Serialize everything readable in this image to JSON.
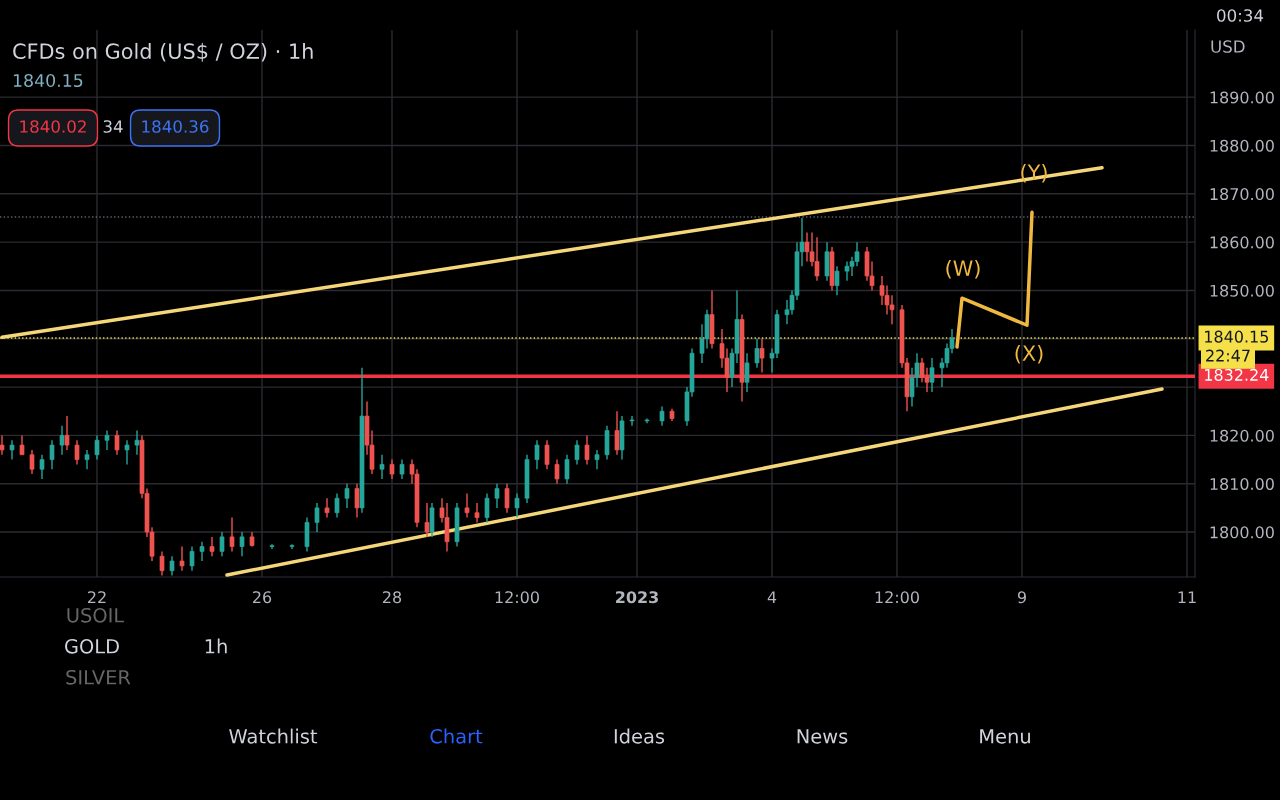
{
  "chart_data": {
    "type": "candlestick",
    "title": "CFDs on Gold (US$ / OZ) · 1h",
    "subtitle": "1840.15",
    "ylabel": "USD",
    "categories": [
      null,
      null,
      null,
      null,
      null,
      null,
      null,
      null,
      null,
      null,
      null,
      null,
      null,
      null,
      null,
      null,
      null,
      null,
      null,
      "22",
      null,
      null,
      null,
      null,
      null,
      null,
      null,
      null,
      null,
      null,
      null,
      null,
      null,
      null,
      null,
      null,
      null,
      null,
      null,
      null,
      null,
      null,
      null,
      null,
      null,
      null,
      null,
      null,
      null,
      null,
      null,
      null,
      "26",
      null,
      null,
      null,
      null,
      null,
      null,
      null,
      null,
      null,
      null,
      null,
      null,
      null,
      null,
      null,
      null,
      null,
      null,
      null,
      null,
      null,
      null,
      null,
      null,
      null,
      "28",
      null,
      null,
      null,
      null,
      null,
      null,
      null,
      null,
      null,
      null,
      null,
      null,
      null,
      null,
      null,
      null,
      null,
      null,
      null,
      null,
      null,
      null,
      null,
      null,
      "12:00",
      null,
      null,
      null,
      null,
      null,
      null,
      null,
      null,
      null,
      null,
      null,
      null,
      null,
      null,
      null,
      null,
      null,
      null,
      null,
      null,
      null,
      null,
      null,
      "2023",
      null,
      null,
      null,
      null,
      null,
      null,
      null,
      null,
      null,
      null,
      null,
      null,
      null,
      null,
      null,
      null,
      null,
      null,
      null,
      null,
      null,
      null,
      null,
      null,
      null,
      null,
      "4",
      null,
      null,
      null,
      null,
      null,
      null,
      null,
      null,
      null,
      null,
      null,
      null,
      null,
      null,
      null,
      null,
      null,
      null,
      null,
      null,
      null,
      null,
      null,
      null,
      "12:00",
      null,
      null,
      null,
      null,
      null,
      null,
      null,
      null,
      null,
      null,
      null,
      null,
      null,
      null,
      null,
      null,
      null,
      null,
      null,
      null,
      null,
      null,
      null,
      null,
      "9",
      null,
      null,
      null,
      null,
      null,
      null,
      null,
      null,
      null,
      null,
      null,
      null,
      null,
      null,
      null,
      null,
      null,
      null,
      null,
      null,
      null,
      null,
      null,
      null,
      null,
      null,
      null,
      null,
      null,
      null,
      null,
      null,
      "11",
      null
    ],
    "ohlc": [
      [
        1818,
        1820,
        1816,
        1817
      ],
      null,
      [
        1817,
        1819,
        1815,
        1818
      ],
      null,
      [
        1818,
        1820,
        1816,
        1816
      ],
      null,
      [
        1816,
        1817,
        1812,
        1813
      ],
      null,
      [
        1813,
        1816,
        1811,
        1815
      ],
      null,
      [
        1815,
        1819,
        1813,
        1818
      ],
      null,
      [
        1818,
        1822,
        1816,
        1820
      ],
      [
        1820,
        1824,
        1817,
        1818
      ],
      null,
      [
        1818,
        1819,
        1814,
        1815
      ],
      null,
      [
        1815,
        1817,
        1813,
        1816
      ],
      null,
      [
        1816,
        1820,
        1815,
        1819
      ],
      null,
      [
        1819,
        1821,
        1817,
        1820
      ],
      null,
      [
        1820,
        1821,
        1816,
        1817
      ],
      null,
      [
        1817,
        1819,
        1814,
        1818
      ],
      null,
      [
        1818,
        1821,
        1816,
        1819
      ],
      [
        1819,
        1820,
        1807,
        1808
      ],
      [
        1808,
        1809,
        1799,
        1800
      ],
      [
        1800,
        1801,
        1794,
        1795
      ],
      null,
      [
        1795,
        1796,
        1791,
        1792
      ],
      null,
      [
        1792,
        1795,
        1791,
        1794
      ],
      null,
      [
        1794,
        1797,
        1792,
        1793
      ],
      null,
      [
        1793,
        1797,
        1792,
        1796
      ],
      null,
      [
        1796,
        1798,
        1794,
        1797
      ],
      null,
      [
        1797,
        1799,
        1795,
        1796
      ],
      null,
      [
        1796,
        1800,
        1795,
        1799
      ],
      null,
      [
        1799,
        1803,
        1796,
        1797
      ],
      null,
      [
        1797,
        1800,
        1795,
        1799
      ],
      null,
      [
        1799,
        1800,
        1797,
        1797.2
      ],
      null,
      null,
      null,
      [
        1797,
        1797.5,
        1796.5,
        1797.2
      ],
      null,
      null,
      null,
      [
        1797,
        1797.5,
        1796.5,
        1797.2
      ],
      null,
      null,
      [
        1797,
        1803,
        1796,
        1802
      ],
      null,
      [
        1802,
        1806,
        1800,
        1805
      ],
      null,
      [
        1805,
        1807,
        1803,
        1804
      ],
      null,
      [
        1804,
        1808,
        1803,
        1807
      ],
      null,
      [
        1807,
        1810,
        1805,
        1809
      ],
      null,
      [
        1809,
        1810,
        1803,
        1805
      ],
      [
        1805,
        1834,
        1804,
        1824
      ],
      [
        1824,
        1827,
        1816,
        1818
      ],
      [
        1818,
        1821,
        1812,
        1813
      ],
      null,
      [
        1813,
        1816,
        1811,
        1814
      ],
      null,
      [
        1814,
        1815,
        1811,
        1812
      ],
      null,
      [
        1812,
        1815,
        1811,
        1814
      ],
      null,
      [
        1814,
        1815,
        1810,
        1812
      ],
      [
        1812,
        1813,
        1801,
        1802
      ],
      null,
      [
        1802,
        1806,
        1799,
        1800
      ],
      [
        1800,
        1806,
        1799,
        1805
      ],
      null,
      [
        1805,
        1807,
        1802,
        1803
      ],
      [
        1803,
        1806,
        1796,
        1798
      ],
      null,
      [
        1798,
        1806,
        1797,
        1805
      ],
      null,
      [
        1805,
        1808,
        1803,
        1804
      ],
      null,
      [
        1804,
        1806,
        1802,
        1803
      ],
      null,
      [
        1803,
        1808,
        1802,
        1807
      ],
      null,
      [
        1807,
        1810,
        1805,
        1809
      ],
      null,
      [
        1809,
        1810,
        1804,
        1805
      ],
      null,
      [
        1805,
        1808,
        1803,
        1807
      ],
      null,
      [
        1807,
        1816,
        1806,
        1815
      ],
      null,
      [
        1815,
        1819,
        1813,
        1818
      ],
      null,
      [
        1818,
        1819,
        1813,
        1814
      ],
      null,
      [
        1814,
        1815,
        1810,
        1811
      ],
      null,
      [
        1811,
        1816,
        1810,
        1815
      ],
      null,
      [
        1815,
        1819,
        1814,
        1818
      ],
      null,
      [
        1818,
        1820,
        1814,
        1815
      ],
      null,
      [
        1815,
        1817,
        1813,
        1816
      ],
      null,
      [
        1816,
        1822,
        1815,
        1821
      ],
      null,
      [
        1821,
        1825,
        1816,
        1817
      ],
      [
        1817,
        1824,
        1815,
        1823
      ],
      null,
      [
        1823,
        1824,
        1822,
        1823.2
      ],
      null,
      null,
      [
        1823,
        1823.5,
        1822.5,
        1823.2
      ],
      null,
      null,
      [
        1823,
        1826,
        1822,
        1825
      ],
      null,
      [
        1825,
        1825.5,
        1823,
        1823.5
      ],
      null,
      null,
      [
        1823,
        1830,
        1822,
        1829
      ],
      [
        1829,
        1838,
        1828,
        1837
      ],
      null,
      [
        1837,
        1843,
        1835,
        1840
      ],
      [
        1840,
        1846,
        1838,
        1845
      ],
      [
        1845,
        1850,
        1838,
        1839
      ],
      null,
      [
        1839,
        1842,
        1834,
        1836
      ],
      [
        1836,
        1838,
        1829,
        1832
      ],
      [
        1832,
        1838,
        1830,
        1837
      ],
      [
        1837,
        1850,
        1835,
        1844
      ],
      [
        1844,
        1845,
        1827,
        1831
      ],
      [
        1831,
        1837,
        1829,
        1835
      ],
      null,
      [
        1835,
        1840,
        1834,
        1838
      ],
      [
        1838,
        1840,
        1833,
        1836
      ],
      null,
      [
        1836,
        1838,
        1833,
        1837
      ],
      [
        1837,
        1846,
        1836,
        1845
      ],
      null,
      [
        1845,
        1848,
        1843,
        1846
      ],
      [
        1846,
        1850,
        1845,
        1849
      ],
      [
        1849,
        1860,
        1848,
        1858
      ],
      [
        1858,
        1865,
        1855,
        1860
      ],
      [
        1860,
        1862,
        1856,
        1858
      ],
      [
        1858,
        1862,
        1855,
        1856
      ],
      [
        1856,
        1861,
        1852,
        1853
      ],
      null,
      [
        1853,
        1860,
        1852,
        1858
      ],
      [
        1858,
        1859,
        1850,
        1851
      ],
      [
        1851,
        1855,
        1849,
        1854
      ],
      null,
      [
        1854,
        1856,
        1852,
        1855
      ],
      [
        1855,
        1857,
        1853,
        1856
      ],
      [
        1856,
        1860,
        1855,
        1858
      ],
      null,
      [
        1858,
        1859,
        1852,
        1853
      ],
      [
        1853,
        1856,
        1850,
        1851
      ],
      null,
      [
        1851,
        1853,
        1847,
        1849
      ],
      [
        1849,
        1851,
        1845,
        1847
      ],
      [
        1847,
        1849,
        1843,
        1846
      ],
      null,
      [
        1846,
        1847,
        1834,
        1835
      ],
      [
        1835,
        1836,
        1825,
        1828
      ],
      [
        1828,
        1834,
        1826,
        1832
      ],
      [
        1832,
        1837,
        1830,
        1835
      ],
      [
        1835,
        1836,
        1831,
        1832
      ],
      [
        1832,
        1834,
        1829,
        1831
      ],
      [
        1831,
        1836,
        1829,
        1834
      ],
      null,
      [
        1834,
        1836,
        1830,
        1835
      ],
      [
        1835,
        1839,
        1834,
        1838
      ],
      [
        1838,
        1842,
        1837,
        1840.15
      ],
      null,
      null,
      null,
      null,
      null,
      null,
      null,
      null,
      null,
      null,
      null,
      null,
      null,
      null,
      null,
      null,
      null,
      null,
      null,
      null,
      null,
      null,
      null,
      null,
      null,
      null,
      null,
      null,
      null,
      null,
      null,
      null,
      null,
      null,
      null,
      null,
      null,
      null,
      null,
      null,
      null,
      null,
      null,
      null,
      null,
      null,
      null,
      null
    ],
    "series": [
      {
        "type": "line",
        "color": "#f5d77a",
        "values": [
          1840.3,
          null,
          null,
          null,
          null,
          null,
          null,
          null,
          null,
          null,
          null,
          null,
          null,
          null,
          null,
          null,
          null,
          null,
          null,
          null,
          null,
          null,
          null,
          null,
          null,
          null,
          null,
          null,
          null,
          null,
          null,
          null,
          null,
          null,
          null,
          null,
          null,
          null,
          null,
          null,
          null,
          null,
          null,
          null,
          null,
          null,
          null,
          null,
          null,
          null,
          null,
          null,
          null,
          null,
          null,
          null,
          null,
          null,
          null,
          null,
          null,
          null,
          null,
          null,
          null,
          null,
          null,
          null,
          null,
          null,
          null,
          null,
          null,
          null,
          null,
          null,
          null,
          null,
          null,
          null,
          null,
          null,
          null,
          null,
          null,
          null,
          null,
          null,
          null,
          null,
          null,
          null,
          null,
          null,
          null,
          null,
          null,
          null,
          null,
          null,
          null,
          null,
          null,
          null,
          null,
          null,
          null,
          null,
          null,
          null,
          null,
          null,
          null,
          null,
          null,
          null,
          null,
          null,
          null,
          null,
          null,
          null,
          null,
          null,
          null,
          null,
          null,
          null,
          null,
          null,
          null,
          null,
          null,
          null,
          null,
          null,
          null,
          null,
          null,
          null,
          null,
          null,
          null,
          null,
          null,
          null,
          null,
          null,
          null,
          null,
          null,
          null,
          null,
          null,
          null,
          null,
          null,
          null,
          null,
          null,
          null,
          null,
          null,
          null,
          null,
          null,
          null,
          null,
          null,
          null,
          null,
          null,
          null,
          null,
          null,
          null,
          null,
          null,
          null,
          null,
          null,
          null,
          null,
          null,
          null,
          null,
          null,
          null,
          null,
          null,
          null,
          null,
          null,
          null,
          null,
          null,
          null,
          null,
          null,
          null,
          null,
          null,
          null,
          null,
          null,
          null,
          null,
          null,
          null,
          null,
          null,
          null,
          null,
          null,
          null,
          null,
          null,
          null,
          null,
          null,
          1875.4,
          null,
          null,
          null,
          null,
          null,
          null,
          null,
          null,
          null,
          null,
          null,
          null,
          null,
          null,
          null,
          null,
          null,
          null
        ]
      },
      {
        "type": "line",
        "color": "#f5d77a",
        "values": [
          null,
          null,
          null,
          null,
          null,
          null,
          null,
          null,
          null,
          null,
          null,
          null,
          null,
          null,
          null,
          null,
          null,
          null,
          null,
          null,
          null,
          null,
          null,
          null,
          null,
          null,
          null,
          null,
          null,
          null,
          null,
          null,
          null,
          null,
          null,
          null,
          null,
          null,
          null,
          null,
          null,
          null,
          null,
          null,
          null,
          1791.1,
          null,
          null,
          null,
          null,
          null,
          null,
          null,
          null,
          null,
          null,
          null,
          null,
          null,
          null,
          null,
          null,
          null,
          null,
          null,
          null,
          null,
          null,
          null,
          null,
          null,
          null,
          null,
          null,
          null,
          null,
          null,
          null,
          null,
          null,
          null,
          null,
          null,
          null,
          null,
          null,
          null,
          null,
          null,
          null,
          null,
          null,
          null,
          null,
          null,
          null,
          null,
          null,
          null,
          null,
          null,
          null,
          null,
          null,
          null,
          null,
          null,
          null,
          null,
          null,
          null,
          null,
          null,
          null,
          null,
          null,
          null,
          null,
          null,
          null,
          null,
          null,
          null,
          null,
          null,
          null,
          null,
          null,
          null,
          null,
          null,
          null,
          null,
          null,
          null,
          null,
          null,
          null,
          null,
          null,
          null,
          null,
          null,
          null,
          null,
          null,
          null,
          null,
          null,
          null,
          null,
          null,
          null,
          null,
          null,
          null,
          null,
          null,
          null,
          null,
          null,
          null,
          null,
          null,
          null,
          null,
          null,
          null,
          null,
          null,
          null,
          null,
          null,
          null,
          null,
          null,
          null,
          null,
          null,
          null,
          null,
          null,
          null,
          null,
          null,
          null,
          null,
          null,
          null,
          null,
          null,
          null,
          null,
          null,
          null,
          null,
          null,
          null,
          null,
          null,
          null,
          null,
          null,
          null,
          null,
          null,
          null,
          null,
          null,
          null,
          null,
          null,
          null,
          null,
          null,
          null,
          null,
          null,
          null,
          null,
          null,
          null,
          null,
          null,
          null,
          null,
          null,
          null,
          null,
          null,
          null,
          null,
          1829.6,
          null,
          null,
          null,
          null,
          null,
          null
        ]
      },
      {
        "type": "line",
        "color": "#f0b840",
        "values": [
          null,
          null,
          null,
          null,
          null,
          null,
          null,
          null,
          null,
          null,
          null,
          null,
          null,
          null,
          null,
          null,
          null,
          null,
          null,
          null,
          null,
          null,
          null,
          null,
          null,
          null,
          null,
          null,
          null,
          null,
          null,
          null,
          null,
          null,
          null,
          null,
          null,
          null,
          null,
          null,
          null,
          null,
          null,
          null,
          null,
          null,
          null,
          null,
          null,
          null,
          null,
          null,
          null,
          null,
          null,
          null,
          null,
          null,
          null,
          null,
          null,
          null,
          null,
          null,
          null,
          null,
          null,
          null,
          null,
          null,
          null,
          null,
          null,
          null,
          null,
          null,
          null,
          null,
          null,
          null,
          null,
          null,
          null,
          null,
          null,
          null,
          null,
          null,
          null,
          null,
          null,
          null,
          null,
          null,
          null,
          null,
          null,
          null,
          null,
          null,
          null,
          null,
          null,
          null,
          null,
          null,
          null,
          null,
          null,
          null,
          null,
          null,
          null,
          null,
          null,
          null,
          null,
          null,
          null,
          null,
          null,
          null,
          null,
          null,
          null,
          null,
          null,
          null,
          null,
          null,
          null,
          null,
          null,
          null,
          null,
          null,
          null,
          null,
          null,
          null,
          null,
          null,
          null,
          null,
          null,
          null,
          null,
          null,
          null,
          null,
          null,
          null,
          null,
          null,
          null,
          null,
          null,
          null,
          null,
          null,
          null,
          null,
          null,
          null,
          null,
          null,
          null,
          null,
          null,
          null,
          null,
          null,
          null,
          null,
          null,
          null,
          null,
          null,
          null,
          null,
          null,
          null,
          null,
          null,
          null,
          null,
          null,
          null,
          null,
          null,
          null,
          1838.3,
          1848.4,
          null,
          null,
          null,
          null,
          null,
          null,
          null,
          null,
          null,
          null,
          null,
          null,
          1842.8,
          1866.2,
          null,
          null,
          null,
          null,
          null,
          null,
          null,
          null,
          null,
          null,
          null,
          null,
          null,
          null,
          null,
          null,
          null,
          null,
          null,
          null,
          null,
          null,
          null,
          null,
          null,
          null,
          null,
          null,
          null,
          null,
          null,
          null
        ]
      }
    ],
    "ref_lines": [
      {
        "axis": "y",
        "value": 1832.24,
        "label": "1832.24",
        "color": "#f23645",
        "line_style": "solid"
      },
      {
        "axis": "y",
        "value": 1840.15,
        "label": "1840.15",
        "color": "#f5e04a",
        "line_style": "dotted"
      },
      {
        "axis": "y",
        "value": 1865.2,
        "label": null,
        "color": "#5d606b",
        "line_style": "dotted"
      }
    ],
    "annotations": [
      "(W)",
      "(X)",
      "(Y)",
      "1840.02",
      "34",
      "1840.36",
      "22:47",
      "USOIL",
      "GOLD",
      "SILVER",
      "1h",
      "Watchlist",
      "Chart",
      "Ideas",
      "News",
      "Menu",
      "00:34"
    ],
    "ylim": [
      1790.7,
      1903.9
    ],
    "yticks": [
      {
        "value": 1800,
        "label": "1800.00"
      },
      {
        "value": 1810,
        "label": "1810.00"
      },
      {
        "value": 1820,
        "label": "1820.00"
      },
      {
        "value": 1830,
        "label": null
      },
      {
        "value": 1840,
        "label": null
      },
      {
        "value": 1850,
        "label": "1850.00"
      },
      {
        "value": 1860,
        "label": "1860.00"
      },
      {
        "value": 1870,
        "label": "1870.00"
      },
      {
        "value": 1880,
        "label": "1880.00"
      },
      {
        "value": 1890,
        "label": "1890.00"
      }
    ],
    "grid": true
  }
}
